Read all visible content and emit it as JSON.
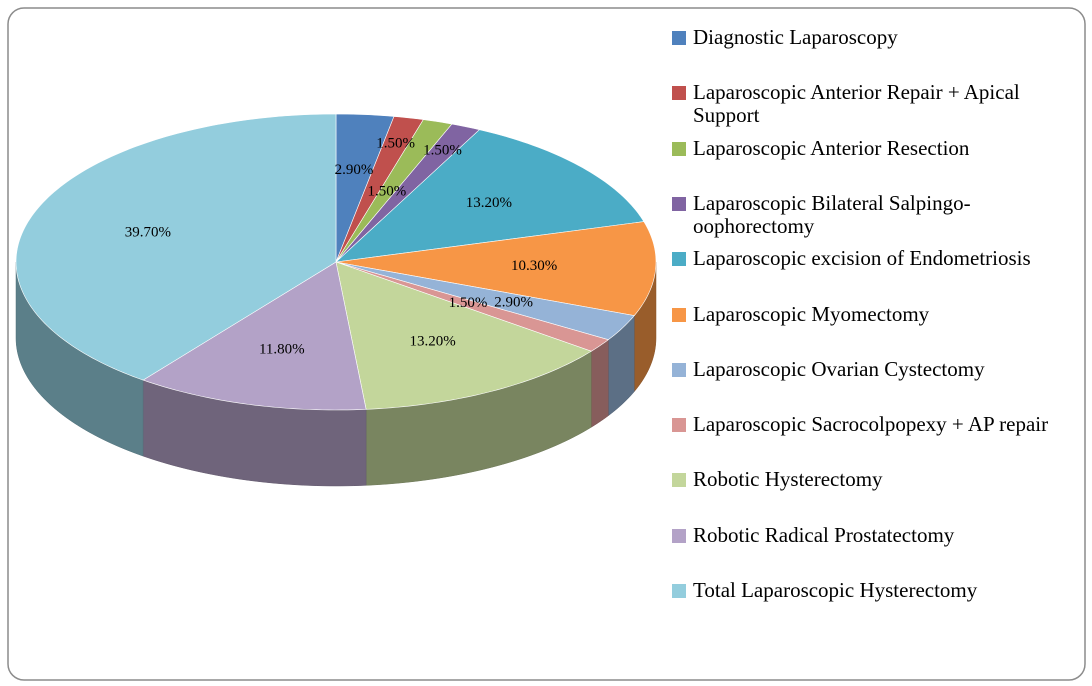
{
  "chart_data": {
    "type": "pie",
    "categories": [
      "Diagnostic Laparoscopy",
      "Laparoscopic Anterior Repair + Apical Support",
      "Laparoscopic Anterior Resection",
      "Laparoscopic Bilateral Salpingo-oophorectomy",
      "Laparoscopic excision of Endometriosis",
      "Laparoscopic Myomectomy",
      "Laparoscopic Ovarian Cystectomy",
      "Laparoscopic Sacrocolpopexy + AP repair",
      "Robotic Hysterectomy",
      "Robotic Radical Prostatectomy",
      "Total Laparoscopic Hysterectomy"
    ],
    "values": [
      2.9,
      1.5,
      1.5,
      1.5,
      13.2,
      10.3,
      2.9,
      1.5,
      13.2,
      11.8,
      39.7
    ],
    "value_labels": [
      "2.90%",
      "1.50%",
      "1.50%",
      "1.50%",
      "13.20%",
      "10.30%",
      "2.90%",
      "1.50%",
      "13.20%",
      "11.80%",
      "39.70%"
    ],
    "colors": [
      "#4F81BD",
      "#C0504D",
      "#9BBB59",
      "#8064A2",
      "#4BACC6",
      "#F79646",
      "#95B3D7",
      "#D99694",
      "#C3D69B",
      "#B3A2C7",
      "#93CDDD"
    ],
    "legend": "right"
  }
}
